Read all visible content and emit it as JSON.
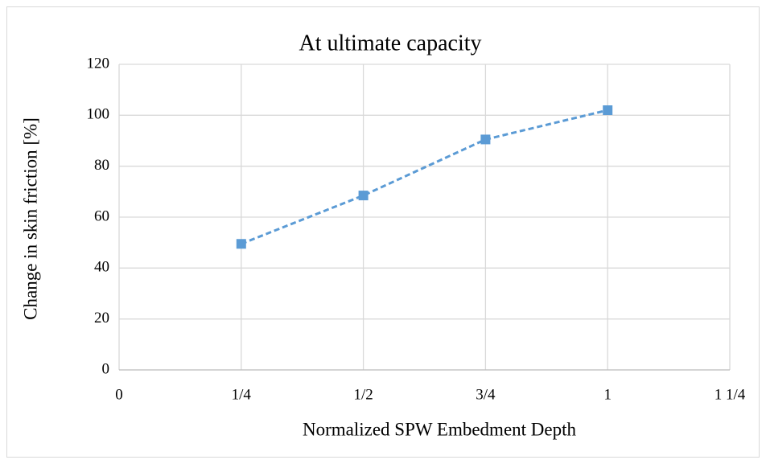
{
  "chart_data": {
    "type": "line",
    "title": "At ultimate  capacity",
    "xlabel": "Normalized  SPW Embedment  Depth",
    "ylabel": "Change  in skin  friction  [%]",
    "x": [
      0.25,
      0.5,
      0.75,
      1
    ],
    "series": [
      {
        "name": "At ultimate capacity",
        "color": "#5b9bd5",
        "values": [
          49.5,
          68.5,
          90.5,
          102
        ]
      }
    ],
    "xlim": [
      0,
      1.25
    ],
    "xticks": [
      0,
      {
        "value": 0.25,
        "label": "1/4"
      },
      {
        "value": 0.5,
        "label": "1/2"
      },
      {
        "value": 0.75,
        "label": "3/4"
      },
      1,
      {
        "value": 1.25,
        "label": "1 1/4"
      }
    ],
    "ylim": [
      0,
      120
    ],
    "yticks": [
      0,
      20,
      40,
      60,
      80,
      100,
      120
    ],
    "grid": true
  }
}
